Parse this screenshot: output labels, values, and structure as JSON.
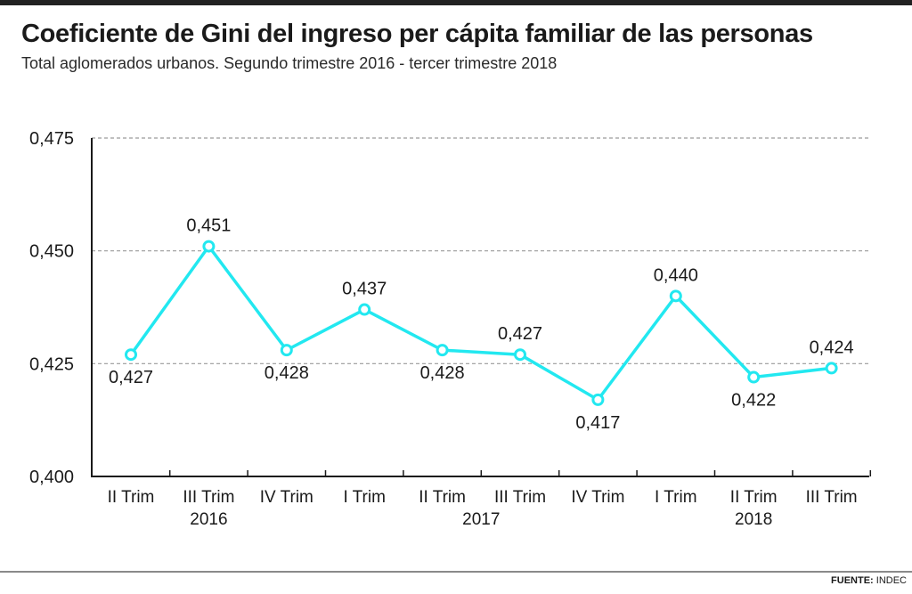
{
  "header": {
    "title": "Coeficiente de Gini del ingreso per cápita familiar de las personas",
    "subtitle": "Total aglomerados urbanos. Segundo trimestre 2016 - tercer trimestre 2018"
  },
  "footer": {
    "source_label": "FUENTE:",
    "source_value": "INDEC"
  },
  "chart_data": {
    "type": "line",
    "title": "Coeficiente de Gini del ingreso per cápita familiar de las personas",
    "subtitle": "Total aglomerados urbanos. Segundo trimestre 2016 - tercer trimestre 2018",
    "categories": [
      "II Trim",
      "III Trim",
      "IV Trim",
      "I Trim",
      "II Trim",
      "III Trim",
      "IV Trim",
      "I Trim",
      "II Trim",
      "III Trim"
    ],
    "year_labels": [
      {
        "label": "2016",
        "index": 1
      },
      {
        "label": "2017",
        "index": 4.5
      },
      {
        "label": "2018",
        "index": 8
      }
    ],
    "series": [
      {
        "values": [
          0.427,
          0.451,
          0.428,
          0.437,
          0.428,
          0.427,
          0.417,
          0.44,
          0.422,
          0.424
        ],
        "value_labels": [
          "0,427",
          "0,451",
          "0,428",
          "0,437",
          "0,428",
          "0,427",
          "0,417",
          "0,440",
          "0,422",
          "0,424"
        ],
        "label_positions": [
          "below",
          "above",
          "below",
          "above",
          "below",
          "above",
          "below",
          "above",
          "below",
          "above"
        ]
      }
    ],
    "ylim": [
      0.4,
      0.475
    ],
    "yticks": [
      0.4,
      0.425,
      0.45,
      0.475
    ],
    "ytick_labels": [
      "0,400",
      "0,425",
      "0,450",
      "0,475"
    ],
    "xlabel": "",
    "ylabel": "",
    "grid": true,
    "line_color": "#22e8f0",
    "gridline_color": "#9a9a9a",
    "axis_color": "#1a1a1a"
  }
}
